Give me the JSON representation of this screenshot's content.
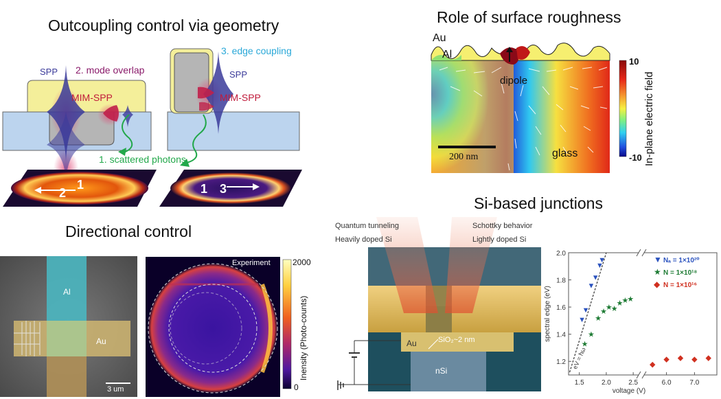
{
  "panels": {
    "outcoupling": {
      "title": "Outcoupling control via geometry",
      "labels": {
        "spp_left": "SPP",
        "mode_overlap": "2. mode overlap",
        "mim_left": "MIM-SPP",
        "edge_coupling": "3. edge coupling",
        "spp_right": "SPP",
        "mim_right": "MIM-SPP",
        "scattered": "1. scattered photons",
        "img1_n1": "1",
        "img1_n2": "2",
        "img2_n1": "1",
        "img2_n3": "3"
      }
    },
    "roughness": {
      "title": "Role of surface  roughness",
      "labels": {
        "au": "Au",
        "al": "Al",
        "dipole": "dipole",
        "scale": "200 nm",
        "glass": "glass",
        "cb_max": "10",
        "cb_min": "-10",
        "cb_title": "In-plane electric field"
      }
    },
    "directional": {
      "title": "Directional control",
      "labels": {
        "al": "Al",
        "au": "Au",
        "scale": "3 um",
        "experiment": "Experiment",
        "cb_max": "2000",
        "cb_min": "0",
        "cb_title": "Inensity (Photo-counts)"
      }
    },
    "junctions": {
      "title": "Si-based junctions",
      "labels": {
        "quantum": "Quantum tunneling",
        "heavily": "Heavily doped Si",
        "schottky": "Schottky behavior",
        "lightly": "Lightly doped Si",
        "au": "Au",
        "sio2": "SiO₂~2 nm",
        "nsi": "nSi"
      }
    }
  },
  "chart_data": {
    "type": "scatter",
    "xlabel": "voltage (V)",
    "ylabel": "spectral edge (eV)",
    "ylim": [
      1.1,
      2.0
    ],
    "yticks": [
      "1.2",
      "1.4",
      "1.6",
      "1.8",
      "2.0"
    ],
    "xticks_left": [
      "1.5",
      "2.0",
      "2.5"
    ],
    "xticks_right": [
      "6.0",
      "7.0"
    ],
    "line_label": "eV = ħω",
    "series": [
      {
        "name": "Nₐ = 1×10²⁰",
        "marker": "▼",
        "color": "#2a52be",
        "x": [
          1.55,
          1.62,
          1.72,
          1.8,
          1.88,
          1.92
        ],
        "y": [
          1.51,
          1.58,
          1.76,
          1.82,
          1.91,
          1.95
        ]
      },
      {
        "name": "N  = 1×10¹⁸",
        "marker": "★",
        "color": "#1e7b34",
        "x": [
          1.6,
          1.72,
          1.85,
          1.95,
          2.05,
          2.15,
          2.25,
          2.35,
          2.45
        ],
        "y": [
          1.33,
          1.4,
          1.52,
          1.57,
          1.6,
          1.59,
          1.63,
          1.65,
          1.66
        ]
      },
      {
        "name": "N  = 1×10¹⁶",
        "marker": "◆",
        "color": "#d03020",
        "x": [
          5.5,
          6.0,
          6.5,
          7.0,
          7.5
        ],
        "y": [
          1.18,
          1.22,
          1.23,
          1.22,
          1.23
        ]
      }
    ]
  }
}
